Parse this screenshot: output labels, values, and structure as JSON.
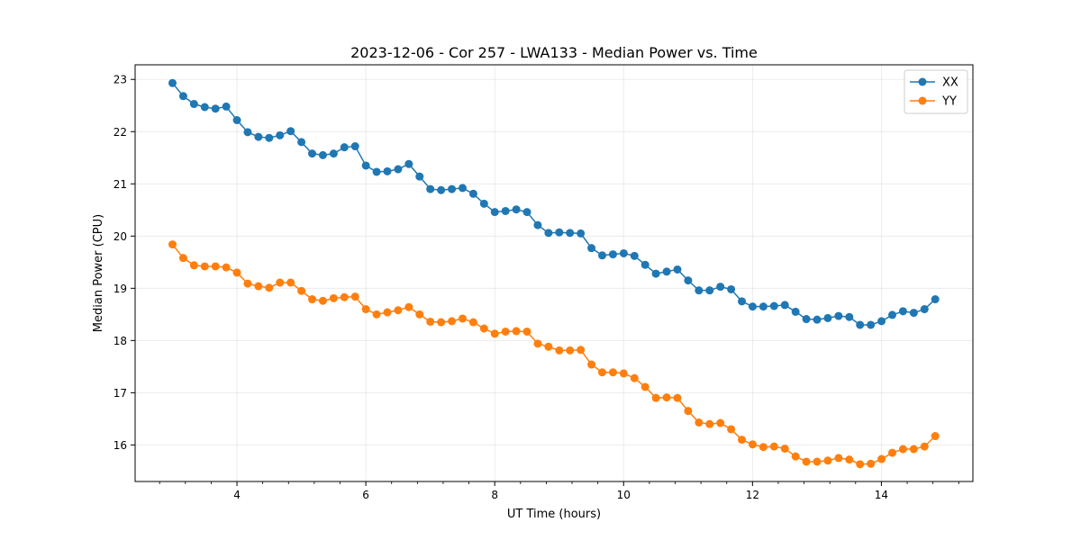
{
  "chart_data": {
    "type": "line",
    "title": "2023-12-06 - Cor 257 - LWA133 - Median Power vs. Time",
    "xlabel": "UT Time (hours)",
    "ylabel": "Median Power (CPU)",
    "xlim": [
      2.42,
      15.42
    ],
    "ylim": [
      15.3,
      23.28
    ],
    "xticks": [
      4,
      6,
      8,
      10,
      12,
      14
    ],
    "xtick_labels": [
      "4",
      "6",
      "8",
      "10",
      "12",
      "14"
    ],
    "yticks": [
      16,
      17,
      18,
      19,
      20,
      21,
      22,
      23
    ],
    "ytick_labels": [
      "16",
      "17",
      "18",
      "19",
      "20",
      "21",
      "22",
      "23"
    ],
    "grid": true,
    "legend_position": "top-right",
    "x_start": 3.0,
    "x_step": 0.1667,
    "series": [
      {
        "name": "XX",
        "color": "#1f77b4",
        "values": [
          22.93,
          22.68,
          22.53,
          22.47,
          22.44,
          22.48,
          22.22,
          21.99,
          21.9,
          21.88,
          21.93,
          22.01,
          21.8,
          21.58,
          21.55,
          21.58,
          21.7,
          21.72,
          21.35,
          21.23,
          21.24,
          21.28,
          21.38,
          21.14,
          20.9,
          20.88,
          20.9,
          20.92,
          20.81,
          20.62,
          20.46,
          20.48,
          20.51,
          20.46,
          20.21,
          20.06,
          20.07,
          20.06,
          20.05,
          19.77,
          19.63,
          19.65,
          19.67,
          19.62,
          19.45,
          19.28,
          19.32,
          19.36,
          19.15,
          18.96,
          18.96,
          19.03,
          18.98,
          18.75,
          18.65,
          18.65,
          18.66,
          18.68,
          18.55,
          18.41,
          18.4,
          18.43,
          18.47,
          18.45,
          18.3,
          18.3,
          18.37,
          18.49,
          18.56,
          18.53,
          18.6,
          18.79
        ]
      },
      {
        "name": "YY",
        "color": "#ff7f0e",
        "values": [
          19.84,
          19.58,
          19.44,
          19.42,
          19.42,
          19.4,
          19.3,
          19.09,
          19.04,
          19.01,
          19.11,
          19.11,
          18.95,
          18.79,
          18.76,
          18.81,
          18.83,
          18.84,
          18.6,
          18.5,
          18.54,
          18.58,
          18.64,
          18.5,
          18.36,
          18.35,
          18.37,
          18.42,
          18.35,
          18.23,
          18.13,
          18.17,
          18.18,
          18.17,
          17.94,
          17.88,
          17.81,
          17.81,
          17.82,
          17.54,
          17.39,
          17.39,
          17.37,
          17.28,
          17.11,
          16.9,
          16.91,
          16.9,
          16.65,
          16.43,
          16.4,
          16.42,
          16.3,
          16.1,
          16.01,
          15.96,
          15.97,
          15.93,
          15.78,
          15.68,
          15.68,
          15.7,
          15.75,
          15.72,
          15.63,
          15.64,
          15.73,
          15.85,
          15.92,
          15.92,
          15.97,
          16.17
        ]
      }
    ]
  }
}
